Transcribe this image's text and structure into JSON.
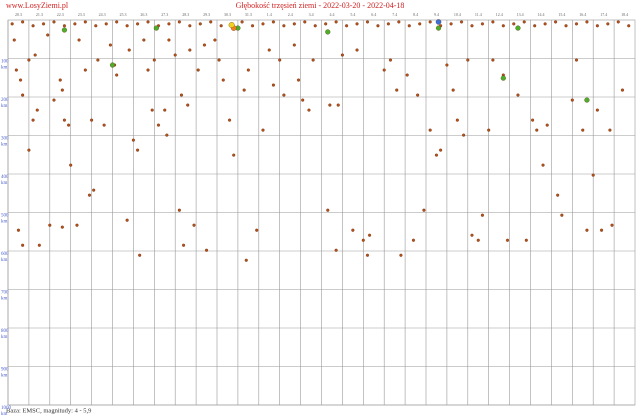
{
  "site": "www.LosyZiemi.pl",
  "chart_data": {
    "type": "scatter",
    "title": "Głębokość trzęsień ziemi - 2022-03-20 - 2022-04-18",
    "footer": "Baza: EMSC, magnitudy: 4 - 5,9",
    "y_unit": "km",
    "xlim": [
      0,
      30
    ],
    "xticks": [
      {
        "value": 0,
        "label": "20.3"
      },
      {
        "value": 1,
        "label": "21.3"
      },
      {
        "value": 2,
        "label": "22.3"
      },
      {
        "value": 3,
        "label": "23.3"
      },
      {
        "value": 4,
        "label": "24.3"
      },
      {
        "value": 5,
        "label": "25.3"
      },
      {
        "value": 6,
        "label": "26.3"
      },
      {
        "value": 7,
        "label": "27.3"
      },
      {
        "value": 8,
        "label": "28.3"
      },
      {
        "value": 9,
        "label": "29.3"
      },
      {
        "value": 10,
        "label": "30.3"
      },
      {
        "value": 11,
        "label": "31.3"
      },
      {
        "value": 12,
        "label": "1.4"
      },
      {
        "value": 13,
        "label": "2.4"
      },
      {
        "value": 14,
        "label": "3.4"
      },
      {
        "value": 15,
        "label": "4.4"
      },
      {
        "value": 16,
        "label": "5.4"
      },
      {
        "value": 17,
        "label": "6.4"
      },
      {
        "value": 18,
        "label": "7.4"
      },
      {
        "value": 19,
        "label": "8.4"
      },
      {
        "value": 20,
        "label": "9.4"
      },
      {
        "value": 21,
        "label": "10.4"
      },
      {
        "value": 22,
        "label": "11.4"
      },
      {
        "value": 23,
        "label": "12.4"
      },
      {
        "value": 24,
        "label": "13.4"
      },
      {
        "value": 25,
        "label": "14.4"
      },
      {
        "value": 26,
        "label": "15.4"
      },
      {
        "value": 27,
        "label": "16.4"
      },
      {
        "value": 28,
        "label": "17.4"
      },
      {
        "value": 29,
        "label": "18.4"
      }
    ],
    "ylim": [
      0,
      1000
    ],
    "yticks": [
      100,
      200,
      300,
      400,
      500,
      600,
      700,
      800,
      900,
      1000
    ],
    "y_inverted": true,
    "grid": true,
    "series": [
      {
        "color": "#b5501a",
        "size": 1.4,
        "x": [
          0.3,
          0.4,
          0.6,
          0.7,
          0.5,
          0.7,
          1.0,
          1.2,
          1.4,
          1.5,
          1.0,
          1.3,
          1.9,
          2.0,
          2.2,
          2.5,
          2.6,
          2.7,
          2.9,
          3.0,
          2.6,
          3.3,
          3.4,
          3.7,
          3.9,
          4.0,
          4.1,
          4.3,
          4.6,
          4.9,
          5.1,
          5.2,
          5.7,
          5.8,
          6.0,
          6.2,
          6.3,
          6.5,
          6.7,
          6.9,
          7.0,
          7.2,
          7.5,
          7.6,
          7.7,
          8.0,
          8.2,
          8.3,
          8.4,
          8.6,
          8.7,
          8.9,
          9.1,
          9.4,
          9.5,
          9.9,
          10.1,
          10.3,
          10.6,
          10.8,
          11.3,
          11.4,
          11.5,
          11.9,
          12.2,
          12.5,
          12.7,
          13.0,
          13.2,
          13.7,
          13.9,
          14.1,
          14.4,
          14.6,
          15.3,
          15.4,
          15.7,
          15.8,
          16.0,
          16.5,
          16.7,
          17.0,
          17.2,
          17.3,
          18.0,
          18.3,
          18.6,
          18.8,
          19.1,
          19.4,
          19.6,
          19.9,
          20.2,
          20.5,
          20.7,
          21.0,
          21.3,
          21.5,
          21.8,
          22.0,
          22.2,
          22.5,
          22.7,
          23.0,
          23.2,
          23.7,
          23.9,
          24.4,
          24.8,
          25.1,
          25.3,
          25.6,
          25.8,
          26.3,
          26.5,
          27.0,
          27.2,
          27.5,
          27.7,
          28.0,
          28.2,
          28.4,
          28.8,
          28.9,
          29.4
        ],
        "values": [
          52,
          130,
          156,
          195,
          546,
          585,
          338,
          260,
          234,
          585,
          104,
          91,
          39,
          533,
          208,
          156,
          182,
          260,
          273,
          377,
          538,
          533,
          52,
          130,
          455,
          260,
          442,
          104,
          273,
          65,
          117,
          143,
          520,
          78,
          312,
          338,
          611,
          52,
          130,
          234,
          104,
          273,
          234,
          299,
          52,
          91,
          494,
          195,
          585,
          221,
          78,
          533,
          130,
          65,
          598,
          52,
          104,
          156,
          260,
          351,
          182,
          624,
          130,
          546,
          286,
          78,
          169,
          104,
          195,
          65,
          156,
          208,
          234,
          104,
          494,
          221,
          598,
          221,
          91,
          546,
          78,
          572,
          611,
          559,
          130,
          104,
          182,
          611,
          143,
          572,
          195,
          494,
          286,
          351,
          338,
          117,
          182,
          260,
          299,
          104,
          559,
          572,
          507,
          286,
          104,
          143,
          572,
          195,
          572,
          260,
          286,
          377,
          273,
          455,
          507,
          208,
          104,
          286,
          546,
          403,
          234,
          546,
          286,
          533,
          182
        ]
      },
      {
        "color": "#b5501a",
        "size": 1.4,
        "x": [
          0.2,
          0.7,
          1.2,
          1.7,
          2.2,
          2.7,
          3.2,
          3.7,
          4.2,
          4.7,
          5.2,
          5.7,
          6.2,
          6.7,
          7.2,
          7.7,
          8.2,
          8.7,
          9.2,
          9.7,
          10.2,
          10.7,
          11.2,
          11.7,
          12.2,
          12.7,
          13.2,
          13.7,
          14.2,
          14.7,
          15.2,
          15.7,
          16.2,
          16.7,
          17.2,
          17.7,
          18.2,
          18.7,
          19.2,
          19.7,
          20.2,
          20.7,
          21.2,
          21.7,
          22.2,
          22.7,
          23.2,
          23.7,
          24.2,
          24.7,
          25.2,
          25.7,
          26.2,
          26.7,
          27.2,
          27.7,
          28.2,
          28.7,
          29.2,
          29.7
        ],
        "values": [
          10,
          5,
          15,
          10,
          5,
          15,
          10,
          5,
          15,
          10,
          5,
          15,
          10,
          5,
          15,
          10,
          5,
          15,
          10,
          5,
          15,
          10,
          5,
          15,
          10,
          5,
          15,
          10,
          5,
          15,
          10,
          5,
          15,
          10,
          5,
          15,
          10,
          5,
          15,
          10,
          5,
          15,
          10,
          5,
          15,
          10,
          5,
          15,
          10,
          5,
          15,
          10,
          5,
          15,
          10,
          5,
          15,
          10,
          5,
          15
        ]
      },
      {
        "color": "#4caf2a",
        "size": 2.4,
        "x": [
          2.7,
          5.0,
          7.1,
          11.0,
          15.3,
          20.6,
          23.7,
          24.4,
          27.7
        ],
        "values": [
          26,
          117,
          21,
          21,
          31,
          21,
          151,
          21,
          208
        ]
      },
      {
        "color": "#f08020",
        "size": 2.6,
        "x": [
          10.8
        ],
        "values": [
          21
        ]
      },
      {
        "color": "#f2d21e",
        "size": 2.8,
        "x": [
          10.7
        ],
        "values": [
          13
        ]
      },
      {
        "color": "#3a6fd8",
        "size": 2.6,
        "x": [
          20.6
        ],
        "values": [
          5
        ]
      }
    ]
  }
}
